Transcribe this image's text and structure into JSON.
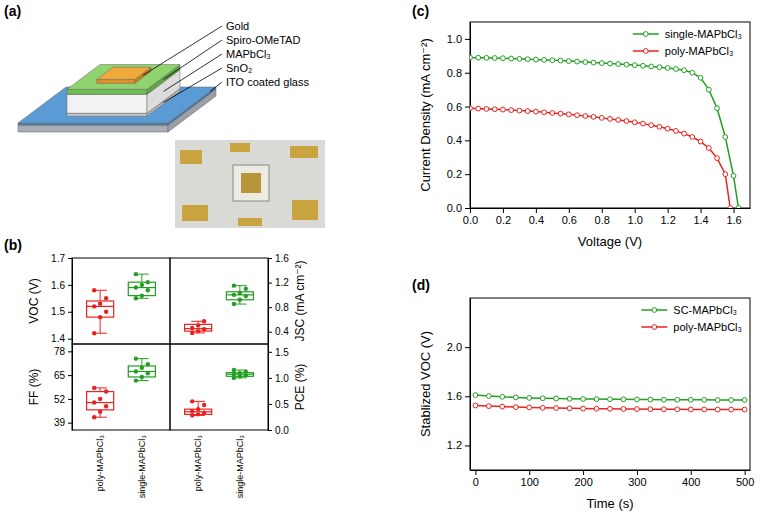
{
  "diagram": {
    "panel": "(a)",
    "layers": [
      "Gold",
      "Spiro-OMeTAD",
      "MAPbCl₃",
      "SnO₂",
      "ITO coated glass"
    ]
  },
  "chart_data": [
    {
      "type": "box",
      "panel": "(b)",
      "categories": [
        "poly-MAPbCl₃",
        "single-MAPbCl₃"
      ],
      "colors": [
        "#e8231f",
        "#22a022"
      ],
      "subplots": [
        {
          "ylabel": "VOC (V)",
          "ylim": [
            1.38,
            1.7
          ],
          "yticks": [
            1.4,
            1.5,
            1.6,
            1.7
          ],
          "boxes": [
            {
              "whisker_low": 1.42,
              "q1": 1.48,
              "median": 1.52,
              "q3": 1.54,
              "whisker_high": 1.58,
              "points": [
                1.42,
                1.48,
                1.5,
                1.52,
                1.53,
                1.55,
                1.58
              ]
            },
            {
              "whisker_low": 1.55,
              "q1": 1.56,
              "median": 1.59,
              "q3": 1.61,
              "whisker_high": 1.64,
              "points": [
                1.55,
                1.56,
                1.58,
                1.59,
                1.6,
                1.61,
                1.64
              ]
            }
          ]
        },
        {
          "ylabel": "JSC (mA cm⁻²)",
          "axis": "y2",
          "ylim": [
            0.2,
            1.6
          ],
          "yticks": [
            0.4,
            0.8,
            1.2,
            1.6
          ],
          "boxes": [
            {
              "whisker_low": 0.38,
              "q1": 0.41,
              "median": 0.45,
              "q3": 0.52,
              "whisker_high": 0.57,
              "points": [
                0.38,
                0.41,
                0.44,
                0.46,
                0.5,
                0.57
              ]
            },
            {
              "whisker_low": 0.85,
              "q1": 0.92,
              "median": 1.0,
              "q3": 1.05,
              "whisker_high": 1.15,
              "points": [
                0.85,
                0.92,
                0.98,
                1.0,
                1.03,
                1.1,
                1.15
              ]
            }
          ]
        },
        {
          "ylabel": "FF (%)",
          "ylim": [
            35,
            82
          ],
          "yticks": [
            39,
            52,
            65,
            78
          ],
          "boxes": [
            {
              "whisker_low": 42,
              "q1": 46,
              "median": 50,
              "q3": 56,
              "whisker_high": 58,
              "points": [
                42,
                45,
                48,
                50,
                52,
                56,
                58
              ]
            },
            {
              "whisker_low": 62,
              "q1": 64,
              "median": 67,
              "q3": 70,
              "whisker_high": 74,
              "points": [
                62,
                64,
                66,
                67,
                69,
                71,
                74
              ]
            }
          ]
        },
        {
          "ylabel": "PCE (%)",
          "axis": "y2",
          "ylim": [
            0,
            1.65
          ],
          "yticks": [
            {
              "value": 0,
              "label": "0.0"
            },
            0.5,
            {
              "value": 1,
              "label": "1.0"
            },
            1.5
          ],
          "boxes": [
            {
              "whisker_low": 0.28,
              "q1": 0.3,
              "median": 0.35,
              "q3": 0.4,
              "whisker_high": 0.55,
              "points": [
                0.28,
                0.3,
                0.33,
                0.36,
                0.4,
                0.48,
                0.55
              ]
            },
            {
              "whisker_low": 1.0,
              "q1": 1.03,
              "median": 1.07,
              "q3": 1.1,
              "whisker_high": 1.15,
              "points": [
                1.0,
                1.03,
                1.05,
                1.07,
                1.09,
                1.12,
                1.15
              ]
            }
          ]
        }
      ]
    },
    {
      "type": "line",
      "panel": "(c)",
      "xlabel": "Voltage (V)",
      "ylabel": "Current Density (mA cm⁻²)",
      "xlim": [
        0,
        1.7
      ],
      "xticks": [
        {
          "value": 0,
          "label": "0.0"
        },
        0.2,
        0.4,
        0.6,
        0.8,
        {
          "value": 1,
          "label": "1.0"
        },
        1.2,
        1.4,
        1.6
      ],
      "ylim": [
        0,
        1.1
      ],
      "yticks": [
        {
          "value": 0,
          "label": "0.0"
        },
        0.2,
        0.4,
        0.6,
        0.8,
        {
          "value": 1,
          "label": "1.0"
        }
      ],
      "legend": "upper right",
      "marker": "circle",
      "series": [
        {
          "name": "single-MAPbCl₃",
          "color": "#22a022",
          "x": [
            0,
            0.05,
            0.1,
            0.15,
            0.2,
            0.25,
            0.3,
            0.35,
            0.4,
            0.45,
            0.5,
            0.55,
            0.6,
            0.65,
            0.7,
            0.75,
            0.8,
            0.85,
            0.9,
            0.95,
            1.0,
            1.05,
            1.1,
            1.15,
            1.2,
            1.25,
            1.3,
            1.35,
            1.4,
            1.45,
            1.5,
            1.55,
            1.6,
            1.63
          ],
          "values": [
            0.89,
            0.889,
            0.888,
            0.887,
            0.886,
            0.884,
            0.882,
            0.88,
            0.878,
            0.876,
            0.874,
            0.872,
            0.869,
            0.866,
            0.863,
            0.86,
            0.857,
            0.854,
            0.851,
            0.848,
            0.845,
            0.841,
            0.837,
            0.833,
            0.828,
            0.822,
            0.815,
            0.8,
            0.77,
            0.7,
            0.59,
            0.42,
            0.19,
            0.0
          ]
        },
        {
          "name": "poly-MAPbCl₃",
          "color": "#e8231f",
          "x": [
            0,
            0.05,
            0.1,
            0.15,
            0.2,
            0.25,
            0.3,
            0.35,
            0.4,
            0.45,
            0.5,
            0.55,
            0.6,
            0.65,
            0.7,
            0.75,
            0.8,
            0.85,
            0.9,
            0.95,
            1.0,
            1.05,
            1.1,
            1.15,
            1.2,
            1.25,
            1.3,
            1.35,
            1.4,
            1.45,
            1.5,
            1.55,
            1.58
          ],
          "values": [
            0.59,
            0.588,
            0.586,
            0.584,
            0.582,
            0.579,
            0.576,
            0.573,
            0.57,
            0.566,
            0.562,
            0.558,
            0.554,
            0.549,
            0.544,
            0.539,
            0.533,
            0.527,
            0.521,
            0.514,
            0.507,
            0.499,
            0.49,
            0.48,
            0.469,
            0.456,
            0.44,
            0.42,
            0.393,
            0.355,
            0.295,
            0.2,
            0.0
          ]
        }
      ]
    },
    {
      "type": "line",
      "panel": "(d)",
      "xlabel": "Time (s)",
      "ylabel": "Stablized VOC (V)",
      "xlim": [
        -10,
        510
      ],
      "xticks": [
        0,
        100,
        200,
        300,
        400,
        500
      ],
      "ylim": [
        1.0,
        2.4
      ],
      "yticks": [
        1.2,
        1.6,
        {
          "value": 2,
          "label": "2.0"
        }
      ],
      "legend": "upper right",
      "marker": "circle",
      "series": [
        {
          "name": "SC-MAPbCl₃",
          "color": "#22a022",
          "x": [
            0,
            25,
            50,
            75,
            100,
            125,
            150,
            175,
            200,
            225,
            250,
            275,
            300,
            325,
            350,
            375,
            400,
            425,
            450,
            475,
            500
          ],
          "values": [
            1.61,
            1.602,
            1.596,
            1.591,
            1.587,
            1.584,
            1.582,
            1.58,
            1.578,
            1.577,
            1.576,
            1.575,
            1.574,
            1.573,
            1.572,
            1.572,
            1.571,
            1.571,
            1.57,
            1.57,
            1.57
          ]
        },
        {
          "name": "poly-MAPbCl₃",
          "color": "#e8231f",
          "x": [
            0,
            25,
            50,
            75,
            100,
            125,
            150,
            175,
            200,
            225,
            250,
            275,
            300,
            325,
            350,
            375,
            400,
            425,
            450,
            475,
            500
          ],
          "values": [
            1.525,
            1.52,
            1.516,
            1.512,
            1.509,
            1.506,
            1.504,
            1.502,
            1.5,
            1.499,
            1.498,
            1.497,
            1.496,
            1.495,
            1.494,
            1.494,
            1.493,
            1.493,
            1.492,
            1.492,
            1.492
          ]
        }
      ]
    }
  ]
}
